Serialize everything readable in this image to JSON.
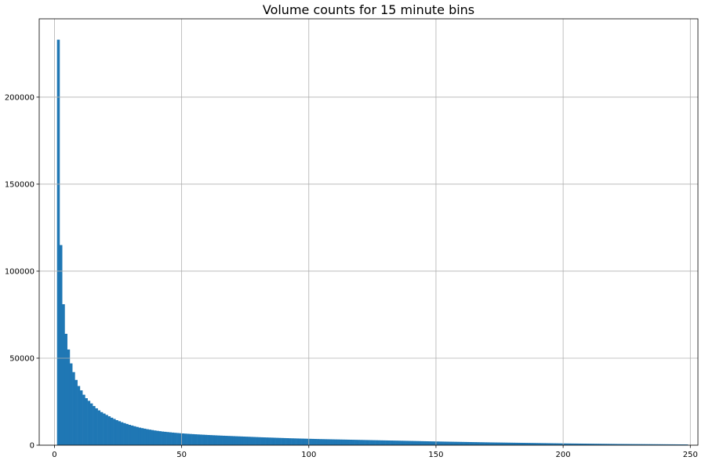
{
  "chart_data": {
    "type": "bar",
    "title": "Volume counts for 15 minute bins",
    "xlabel": "",
    "ylabel": "",
    "xlim": [
      -6,
      253
    ],
    "ylim": [
      0,
      245000
    ],
    "grid": true,
    "legend": "none",
    "bar_color": "#1f77b4",
    "grid_color": "#b0b0b0",
    "x_ticks": [
      0,
      50,
      100,
      150,
      200,
      250
    ],
    "y_ticks": [
      0,
      50000,
      100000,
      150000,
      200000
    ],
    "bin_start": 1,
    "bin_width": 1,
    "values": [
      233000,
      115000,
      81000,
      64000,
      55000,
      47000,
      42000,
      37500,
      34000,
      31500,
      29000,
      27000,
      25500,
      24000,
      22500,
      21200,
      20000,
      19000,
      18200,
      17400,
      16600,
      15800,
      15100,
      14400,
      13800,
      13200,
      12700,
      12200,
      11700,
      11300,
      10900,
      10500,
      10100,
      9800,
      9500,
      9200,
      8950,
      8700,
      8450,
      8250,
      8050,
      7850,
      7700,
      7550,
      7400,
      7250,
      7120,
      6990,
      6870,
      6760,
      6650,
      6550,
      6450,
      6360,
      6270,
      6180,
      6100,
      6020,
      5940,
      5860,
      5790,
      5720,
      5650,
      5580,
      5510,
      5440,
      5380,
      5320,
      5260,
      5200,
      5140,
      5080,
      5020,
      4960,
      4900,
      4840,
      4780,
      4720,
      4660,
      4600,
      4540,
      4490,
      4440,
      4390,
      4340,
      4290,
      4240,
      4190,
      4140,
      4090,
      4040,
      3990,
      3950,
      3910,
      3870,
      3830,
      3790,
      3750,
      3710,
      3670,
      3630,
      3590,
      3550,
      3510,
      3480,
      3450,
      3420,
      3390,
      3360,
      3330,
      3300,
      3270,
      3240,
      3210,
      3180,
      3150,
      3120,
      3090,
      3060,
      3030,
      3000,
      2970,
      2940,
      2910,
      2880,
      2850,
      2820,
      2790,
      2760,
      2730,
      2700,
      2670,
      2640,
      2610,
      2580,
      2550,
      2520,
      2490,
      2460,
      2430,
      2400,
      2370,
      2340,
      2310,
      2280,
      2250,
      2220,
      2190,
      2160,
      2130,
      2100,
      2075,
      2050,
      2025,
      2000,
      1975,
      1950,
      1925,
      1900,
      1875,
      1850,
      1825,
      1800,
      1775,
      1750,
      1725,
      1700,
      1675,
      1650,
      1625,
      1600,
      1580,
      1560,
      1540,
      1520,
      1500,
      1480,
      1460,
      1440,
      1420,
      1400,
      1380,
      1360,
      1340,
      1320,
      1300,
      1280,
      1260,
      1240,
      1220,
      1200,
      1180,
      1160,
      1140,
      1120,
      1100,
      1080,
      1060,
      1040,
      1020,
      1000,
      985,
      970,
      955,
      940,
      925,
      910,
      895,
      880,
      865,
      850,
      835,
      820,
      805,
      790,
      775,
      760,
      745,
      730,
      715,
      700,
      690,
      680,
      670,
      660,
      650,
      640,
      630,
      620,
      610,
      600,
      590,
      580,
      570,
      560,
      550,
      540,
      530,
      520,
      510,
      500,
      490,
      480,
      470,
      460,
      450,
      440,
      430
    ]
  }
}
